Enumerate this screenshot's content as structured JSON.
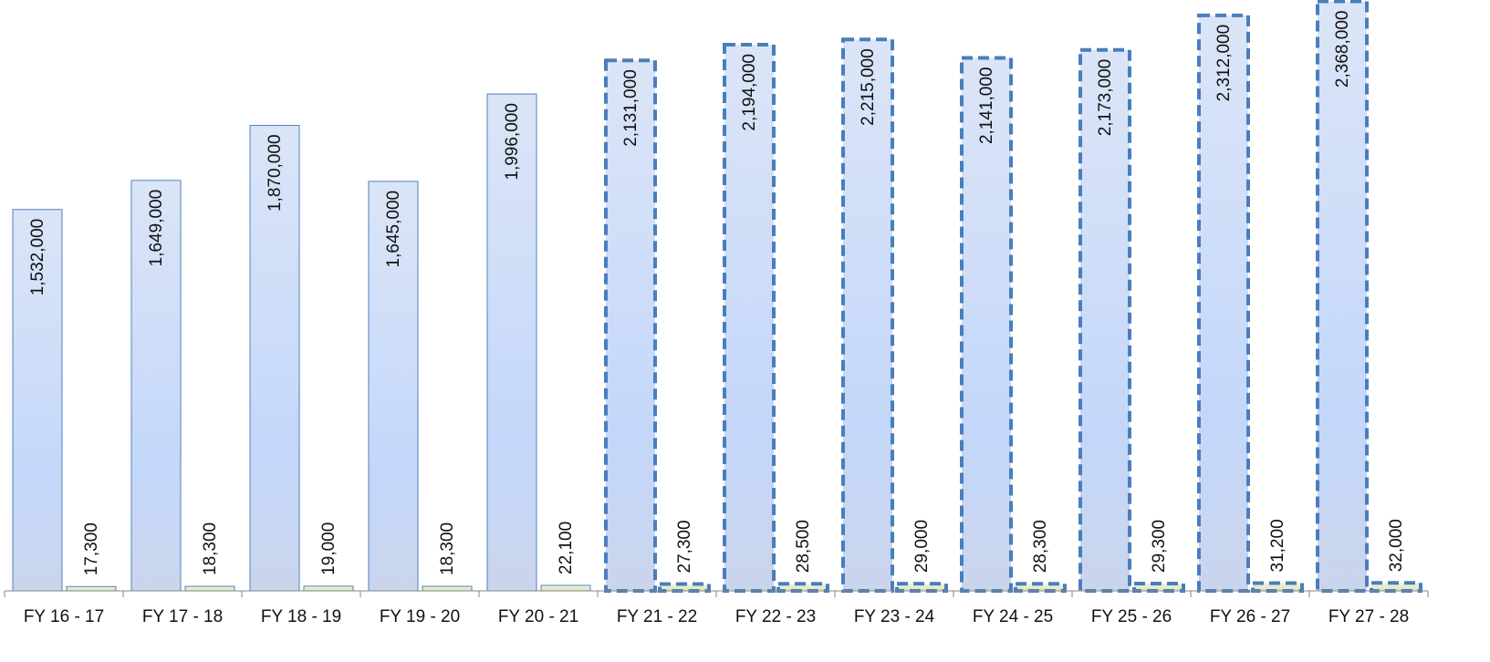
{
  "chart_data": {
    "type": "bar",
    "categories": [
      "FY 16 - 17",
      "FY 17 - 18",
      "FY 18 - 19",
      "FY 19 - 20",
      "FY 20 - 21",
      "FY 21 - 22",
      "FY 22 - 23",
      "FY 23 - 24",
      "FY 24 - 25",
      "FY 25 - 26",
      "FY 26 - 27",
      "FY 27 - 28"
    ],
    "series": [
      {
        "values": [
          1532000,
          1649000,
          1870000,
          1645000,
          1996000,
          2131000,
          2194000,
          2215000,
          2141000,
          2173000,
          2312000,
          2368000
        ],
        "labels": [
          "1,532,000",
          "1,649,000",
          "1,870,000",
          "1,645,000",
          "1,996,000",
          "2,131,000",
          "2,194,000",
          "2,215,000",
          "2,141,000",
          "2,173,000",
          "2,312,000",
          "2,368,000"
        ],
        "fill_top": "#dbe5f7",
        "fill_mid": "#c4d7fa",
        "fill_bottom": "#cad5ec",
        "stroke": "#4f81bd"
      },
      {
        "values": [
          17300,
          18300,
          19000,
          18300,
          22100,
          27300,
          28500,
          29000,
          28300,
          29300,
          31200,
          32000
        ],
        "labels": [
          "17,300",
          "18,300",
          "19,000",
          "18,300",
          "22,100",
          "27,300",
          "28,500",
          "29,000",
          "28,300",
          "29,300",
          "31,200",
          "32,000"
        ],
        "fill_top": "#eef3d8",
        "fill_bottom": "#dbe6bd",
        "stroke": "#4f81bd"
      }
    ],
    "projected_from_index": 5,
    "projected_stroke": "#4a7ebb",
    "axis_color": "#868686",
    "ylim": [
      0,
      2400000
    ],
    "title": "",
    "xlabel": "",
    "ylabel": "",
    "grid": false,
    "legend": "none"
  }
}
